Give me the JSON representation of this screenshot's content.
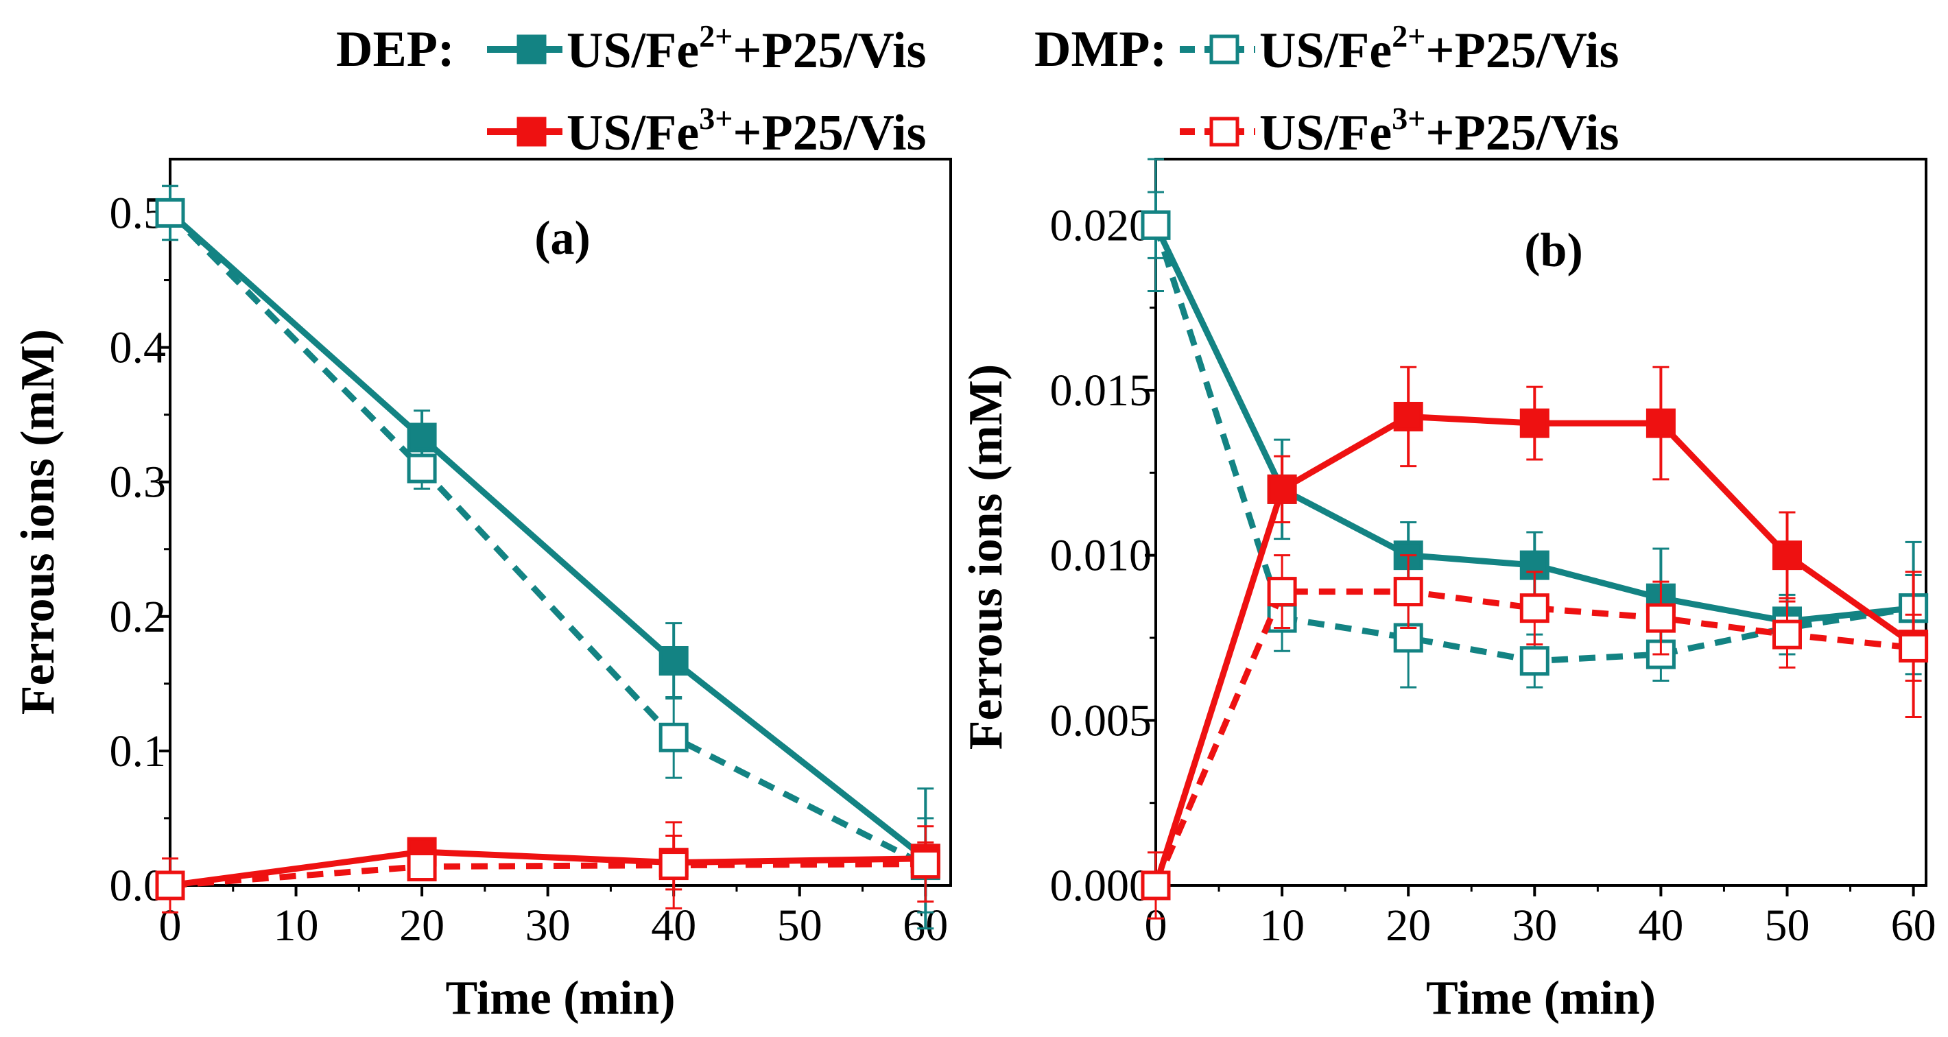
{
  "colors": {
    "teal": "#138383",
    "red": "#ee1111"
  },
  "legend": {
    "dep_label": "DEP:",
    "dmp_label": "DMP:",
    "entries": [
      {
        "group": "DEP",
        "prefix": "US/Fe",
        "sup": "2+",
        "suffix": "+P25/Vis",
        "color": "teal",
        "filled": true,
        "dashed": false
      },
      {
        "group": "DEP",
        "prefix": "US/Fe",
        "sup": "3+",
        "suffix": "+P25/Vis",
        "color": "red",
        "filled": true,
        "dashed": false
      },
      {
        "group": "DMP",
        "prefix": "US/Fe",
        "sup": "2+",
        "suffix": "+P25/Vis",
        "color": "teal",
        "filled": false,
        "dashed": true
      },
      {
        "group": "DMP",
        "prefix": "US/Fe",
        "sup": "3+",
        "suffix": "+P25/Vis",
        "color": "red",
        "filled": false,
        "dashed": true
      }
    ]
  },
  "chart_data": [
    {
      "type": "line",
      "panel": "(a)",
      "xlabel": "Time (min)",
      "ylabel": "Ferrous ions (mM)",
      "xlim": [
        0,
        62
      ],
      "ylim": [
        0,
        0.54
      ],
      "xticks": [
        0,
        10,
        20,
        30,
        40,
        50,
        60
      ],
      "yticks": [
        0.0,
        0.1,
        0.2,
        0.3,
        0.4,
        0.5
      ],
      "ytick_labels": [
        "0.0",
        "0.1",
        "0.2",
        "0.3",
        "0.4",
        "0.5"
      ],
      "series": [
        {
          "name": "DEP: US/Fe2+ +P25/Vis",
          "color": "teal",
          "filled": true,
          "dashed": false,
          "x": [
            0,
            20,
            40,
            60
          ],
          "y": [
            0.5,
            0.333,
            0.167,
            0.02
          ],
          "err": [
            0.02,
            0.02,
            0.028,
            0.052
          ]
        },
        {
          "name": "DMP: US/Fe2+ +P25/Vis",
          "color": "teal",
          "filled": false,
          "dashed": true,
          "x": [
            0,
            20,
            40,
            60
          ],
          "y": [
            0.5,
            0.31,
            0.11,
            0.015
          ],
          "err": [
            0.02,
            0.015,
            0.03,
            0.035
          ]
        },
        {
          "name": "DEP: US/Fe3+ +P25/Vis",
          "color": "red",
          "filled": true,
          "dashed": false,
          "x": [
            0,
            20,
            40,
            60
          ],
          "y": [
            0.0,
            0.025,
            0.017,
            0.02
          ],
          "err": [
            0.0,
            0.008,
            0.02,
            0.012
          ]
        },
        {
          "name": "DMP: US/Fe3+ +P25/Vis",
          "color": "red",
          "filled": false,
          "dashed": true,
          "x": [
            0,
            20,
            40,
            60
          ],
          "y": [
            0.0,
            0.014,
            0.015,
            0.016
          ],
          "err": [
            0.02,
            0.005,
            0.032,
            0.028
          ]
        }
      ]
    },
    {
      "type": "line",
      "panel": "(b)",
      "xlabel": "Time (min)",
      "ylabel": "Ferrous ions (mM)",
      "xlim": [
        0,
        61
      ],
      "ylim": [
        0,
        0.022
      ],
      "xticks": [
        0,
        10,
        20,
        30,
        40,
        50,
        60
      ],
      "yticks": [
        0.0,
        0.005,
        0.01,
        0.015,
        0.02
      ],
      "ytick_labels": [
        "0.000",
        "0.005",
        "0.010",
        "0.015",
        "0.020"
      ],
      "series": [
        {
          "name": "DEP: US/Fe2+ +P25/Vis",
          "color": "teal",
          "filled": true,
          "dashed": false,
          "x": [
            0,
            10,
            20,
            30,
            40,
            50,
            60
          ],
          "y": [
            0.02,
            0.012,
            0.01,
            0.0097,
            0.0087,
            0.008,
            0.0084
          ],
          "err": [
            0.001,
            0.0015,
            0.001,
            0.001,
            0.0015,
            0.0008,
            0.002
          ]
        },
        {
          "name": "DMP: US/Fe2+ +P25/Vis",
          "color": "teal",
          "filled": false,
          "dashed": true,
          "x": [
            0,
            10,
            20,
            30,
            40,
            50,
            60
          ],
          "y": [
            0.02,
            0.0081,
            0.0075,
            0.0068,
            0.007,
            0.0078,
            0.0084
          ],
          "err": [
            0.002,
            0.001,
            0.0015,
            0.0008,
            0.0008,
            0.0008,
            0.001
          ]
        },
        {
          "name": "DEP: US/Fe3+ +P25/Vis",
          "color": "red",
          "filled": true,
          "dashed": false,
          "x": [
            0,
            10,
            20,
            30,
            40,
            50,
            60
          ],
          "y": [
            0.0,
            0.012,
            0.0142,
            0.014,
            0.014,
            0.01,
            0.0073
          ],
          "err": [
            0.0,
            0.001,
            0.0015,
            0.0011,
            0.0017,
            0.0013,
            0.0022
          ]
        },
        {
          "name": "DMP: US/Fe3+ +P25/Vis",
          "color": "red",
          "filled": false,
          "dashed": true,
          "x": [
            0,
            10,
            20,
            30,
            40,
            50,
            60
          ],
          "y": [
            0.0,
            0.0089,
            0.0089,
            0.0084,
            0.0081,
            0.0076,
            0.0072
          ],
          "err": [
            0.001,
            0.0011,
            0.0011,
            0.0011,
            0.0011,
            0.001,
            0.001
          ]
        }
      ]
    }
  ]
}
